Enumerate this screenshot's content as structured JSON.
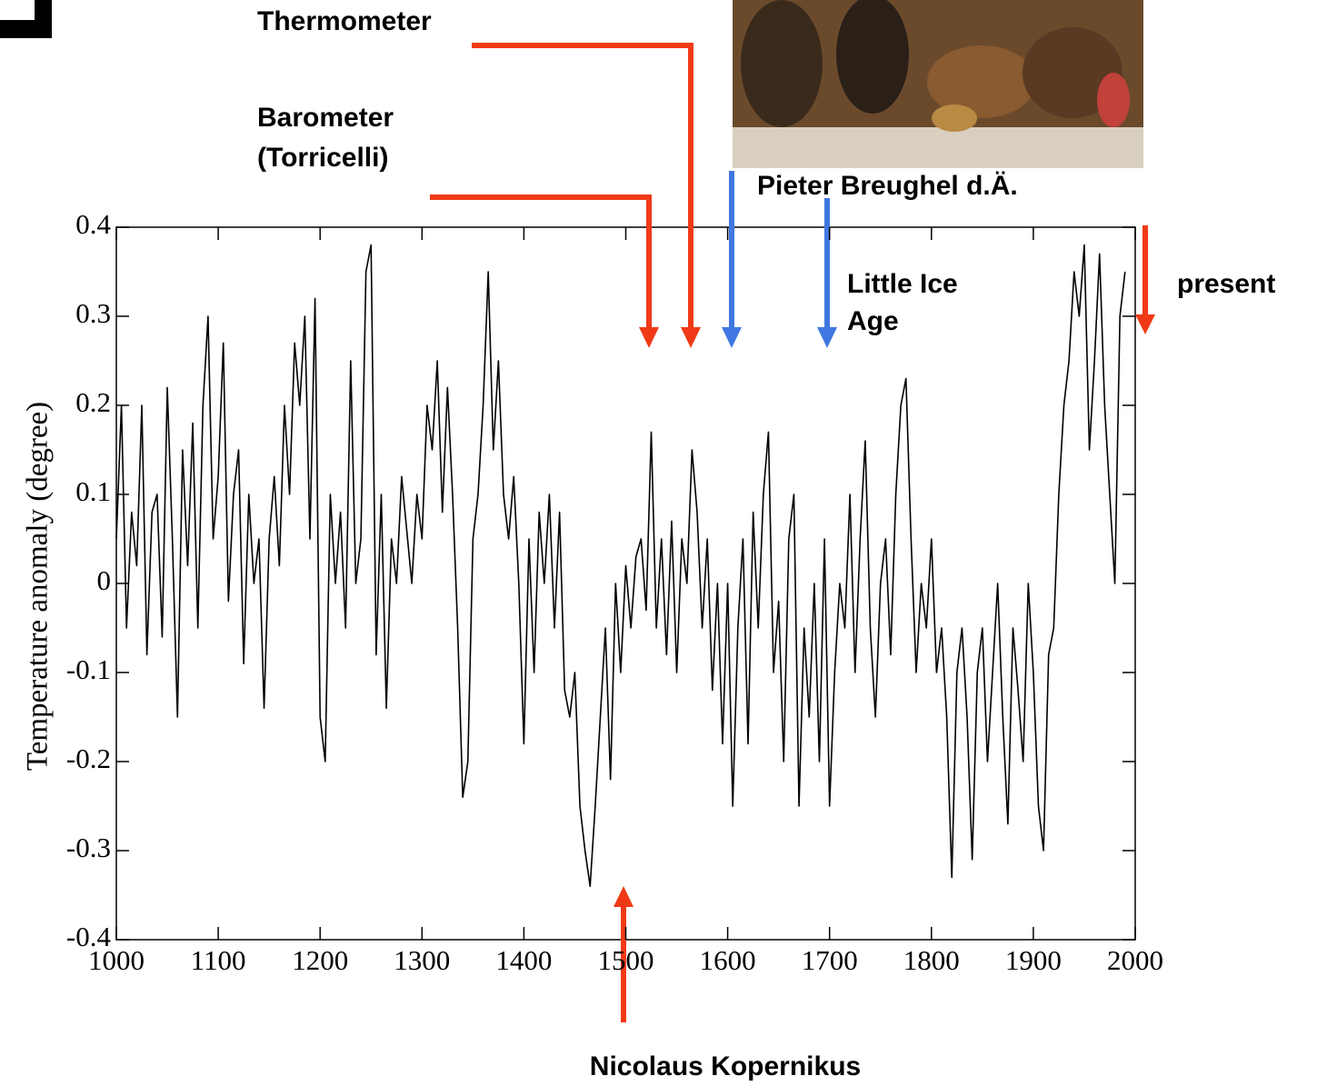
{
  "chart_data": {
    "type": "line",
    "y_label": "Temperature anomaly (degree)",
    "annotations": [
      "Thermometer",
      "Barometer",
      "(Torricelli)",
      "Pieter Breughel d.Ä.",
      "Little Ice",
      "Age",
      "present",
      "Nicolaus Kopernikus"
    ],
    "xlim": [
      1000,
      2000
    ],
    "xticks": [
      1000,
      1100,
      1200,
      1300,
      1400,
      1500,
      1600,
      1700,
      1800,
      1900,
      2000
    ],
    "ylim": [
      -0.4,
      0.4
    ],
    "yticks": [
      -0.4,
      -0.3,
      -0.2,
      -0.1,
      0,
      0.1,
      0.2,
      0.3,
      0.4
    ],
    "grid": false,
    "series": [
      {
        "color": "#000000",
        "x": [
          1000,
          1005,
          1010,
          1015,
          1020,
          1025,
          1030,
          1035,
          1040,
          1045,
          1050,
          1055,
          1060,
          1065,
          1070,
          1075,
          1080,
          1085,
          1090,
          1095,
          1100,
          1105,
          1110,
          1115,
          1120,
          1125,
          1130,
          1135,
          1140,
          1145,
          1150,
          1155,
          1160,
          1165,
          1170,
          1175,
          1180,
          1185,
          1190,
          1195,
          1200,
          1205,
          1210,
          1215,
          1220,
          1225,
          1230,
          1235,
          1240,
          1245,
          1250,
          1255,
          1260,
          1265,
          1270,
          1275,
          1280,
          1285,
          1290,
          1295,
          1300,
          1305,
          1310,
          1315,
          1320,
          1325,
          1330,
          1335,
          1340,
          1345,
          1350,
          1355,
          1360,
          1365,
          1370,
          1375,
          1380,
          1385,
          1390,
          1395,
          1400,
          1405,
          1410,
          1415,
          1420,
          1425,
          1430,
          1435,
          1440,
          1445,
          1450,
          1455,
          1460,
          1465,
          1470,
          1475,
          1480,
          1485,
          1490,
          1495,
          1500,
          1505,
          1510,
          1515,
          1520,
          1525,
          1530,
          1535,
          1540,
          1545,
          1550,
          1555,
          1560,
          1565,
          1570,
          1575,
          1580,
          1585,
          1590,
          1595,
          1600,
          1605,
          1610,
          1615,
          1620,
          1625,
          1630,
          1635,
          1640,
          1645,
          1650,
          1655,
          1660,
          1665,
          1670,
          1675,
          1680,
          1685,
          1690,
          1695,
          1700,
          1705,
          1710,
          1715,
          1720,
          1725,
          1730,
          1735,
          1740,
          1745,
          1750,
          1755,
          1760,
          1765,
          1770,
          1775,
          1780,
          1785,
          1790,
          1795,
          1800,
          1805,
          1810,
          1815,
          1820,
          1825,
          1830,
          1835,
          1840,
          1845,
          1850,
          1855,
          1860,
          1865,
          1870,
          1875,
          1880,
          1885,
          1890,
          1895,
          1900,
          1905,
          1910,
          1915,
          1920,
          1925,
          1930,
          1935,
          1940,
          1945,
          1950,
          1955,
          1960,
          1965,
          1970,
          1975,
          1980,
          1985,
          1990
        ],
        "values": [
          0.05,
          0.2,
          -0.05,
          0.08,
          0.02,
          0.2,
          -0.08,
          0.08,
          0.1,
          -0.06,
          0.22,
          0.05,
          -0.15,
          0.15,
          0.02,
          0.18,
          -0.05,
          0.2,
          0.3,
          0.05,
          0.12,
          0.27,
          -0.02,
          0.1,
          0.15,
          -0.09,
          0.1,
          0.0,
          0.05,
          -0.14,
          0.05,
          0.12,
          0.02,
          0.2,
          0.1,
          0.27,
          0.2,
          0.3,
          0.05,
          0.32,
          -0.15,
          -0.2,
          0.1,
          0.0,
          0.08,
          -0.05,
          0.25,
          0.0,
          0.05,
          0.35,
          0.38,
          -0.08,
          0.1,
          -0.14,
          0.05,
          0.0,
          0.12,
          0.06,
          0.0,
          0.1,
          0.05,
          0.2,
          0.15,
          0.25,
          0.08,
          0.22,
          0.1,
          -0.05,
          -0.24,
          -0.2,
          0.05,
          0.1,
          0.2,
          0.35,
          0.15,
          0.25,
          0.1,
          0.05,
          0.12,
          0.0,
          -0.18,
          0.05,
          -0.1,
          0.08,
          0.0,
          0.1,
          -0.05,
          0.08,
          -0.12,
          -0.15,
          -0.1,
          -0.25,
          -0.3,
          -0.34,
          -0.25,
          -0.15,
          -0.05,
          -0.22,
          0.0,
          -0.1,
          0.02,
          -0.05,
          0.03,
          0.05,
          -0.03,
          0.17,
          -0.05,
          0.05,
          -0.08,
          0.07,
          -0.1,
          0.05,
          0.0,
          0.15,
          0.08,
          -0.05,
          0.05,
          -0.12,
          0.0,
          -0.18,
          0.0,
          -0.25,
          -0.05,
          0.05,
          -0.18,
          0.08,
          -0.05,
          0.1,
          0.17,
          -0.1,
          -0.02,
          -0.2,
          0.05,
          0.1,
          -0.25,
          -0.05,
          -0.15,
          0.0,
          -0.2,
          0.05,
          -0.25,
          -0.1,
          0.0,
          -0.05,
          0.1,
          -0.1,
          0.05,
          0.16,
          -0.05,
          -0.15,
          0.0,
          0.05,
          -0.08,
          0.1,
          0.2,
          0.23,
          0.05,
          -0.1,
          0.0,
          -0.05,
          0.05,
          -0.1,
          -0.05,
          -0.15,
          -0.33,
          -0.1,
          -0.05,
          -0.15,
          -0.31,
          -0.1,
          -0.05,
          -0.2,
          -0.1,
          0.0,
          -0.15,
          -0.27,
          -0.05,
          -0.12,
          -0.2,
          0.0,
          -0.1,
          -0.25,
          -0.3,
          -0.08,
          -0.05,
          0.1,
          0.2,
          0.25,
          0.35,
          0.3,
          0.38,
          0.15,
          0.25,
          0.37,
          0.2,
          0.1,
          0.0,
          0.3,
          0.35
        ]
      }
    ]
  }
}
